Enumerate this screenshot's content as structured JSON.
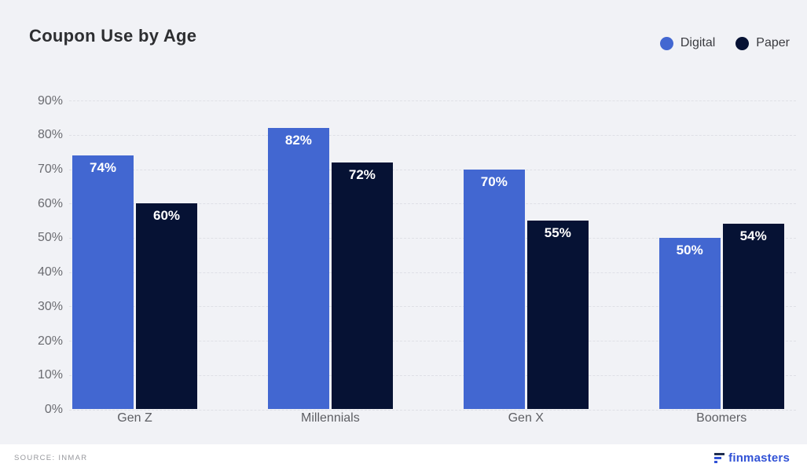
{
  "title": "Coupon Use by Age",
  "legend": {
    "items": [
      {
        "label": "Digital",
        "color": "#4267d1"
      },
      {
        "label": "Paper",
        "color": "#061234"
      }
    ]
  },
  "footer": {
    "source": "SOURCE: INMAR",
    "brand": "finmasters"
  },
  "colors": {
    "background": "#f1f2f6",
    "digital_bar": "#4267d1",
    "paper_bar": "#061234",
    "gridline": "#dfe0e6",
    "axis_text": "#6b6c71",
    "value_label_text": "#ffffff",
    "brand_blue": "#3152d6",
    "brand_navy": "#1e2d50"
  },
  "chart_data": {
    "type": "bar",
    "title": "Coupon Use by Age",
    "categories": [
      "Gen Z",
      "Millennials",
      "Gen X",
      "Boomers"
    ],
    "series": [
      {
        "name": "Digital",
        "color": "#4267d1",
        "values": [
          74,
          82,
          70,
          50
        ]
      },
      {
        "name": "Paper",
        "color": "#061234",
        "values": [
          60,
          72,
          55,
          54
        ]
      }
    ],
    "xlabel": "",
    "ylabel": "",
    "ylim": [
      0,
      90
    ],
    "ytick_step": 10,
    "ytick_suffix": "%",
    "value_label_suffix": "%",
    "grid": true,
    "legend_position": "top-right",
    "source": "INMAR"
  }
}
